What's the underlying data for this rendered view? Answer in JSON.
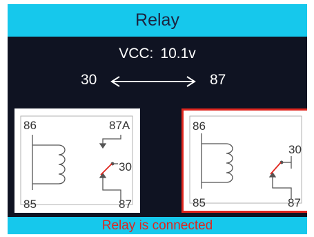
{
  "header": {
    "title": "Relay"
  },
  "voltage": {
    "label": "VCC:",
    "value": "10.1v"
  },
  "connection": {
    "from_pin": "30",
    "to_pin": "87"
  },
  "relay_off": {
    "pin_top_left": "86",
    "pin_top_right": "87A",
    "pin_middle": "30",
    "pin_bottom_left": "85",
    "pin_bottom_right": "87"
  },
  "relay_on": {
    "pin_top_left": "86",
    "pin_middle": "30",
    "pin_bottom_left": "85",
    "pin_bottom_right": "87"
  },
  "status": {
    "message": "Relay is connected"
  },
  "colors": {
    "accent": "#16c8ec",
    "background": "#0f1322",
    "highlight": "#e0261e"
  }
}
